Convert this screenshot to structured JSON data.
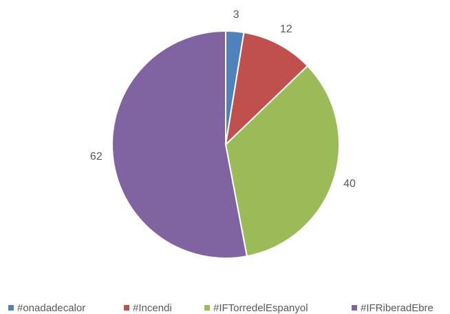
{
  "chart_data": {
    "type": "pie",
    "categories": [
      "#onadadecalor",
      "#Incendi",
      "#IFTorredelEspanyol",
      "#IFRiberadEbre"
    ],
    "values": [
      3,
      12,
      40,
      62
    ],
    "colors": [
      "#4f81bd",
      "#c0504d",
      "#9bbb59",
      "#8064a2"
    ],
    "legend": "bottom"
  }
}
